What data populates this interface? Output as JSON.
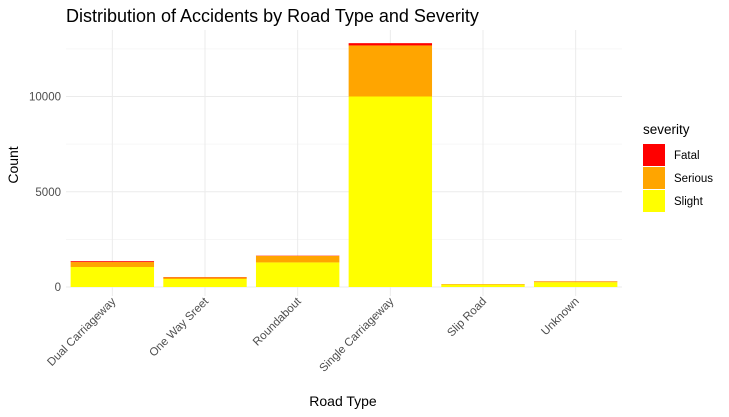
{
  "chart_data": {
    "type": "bar",
    "stacked": true,
    "title": "Distribution of Accidents by Road Type and Severity",
    "xlabel": "Road Type",
    "ylabel": "Count",
    "ylim": [
      0,
      13100
    ],
    "yticks": [
      0,
      5000,
      10000
    ],
    "ytick_labels": [
      "0",
      "5000",
      "10000"
    ],
    "grid": true,
    "categories": [
      "Dual Carriageway",
      "One Way Sreet",
      "Roundabout",
      "Single Carriageway",
      "Slip Road",
      "Unknown"
    ],
    "series": [
      {
        "name": "Slight",
        "color": "#FFFF00",
        "values": [
          1050,
          420,
          1290,
          10000,
          130,
          250
        ]
      },
      {
        "name": "Serious",
        "color": "#FFA500",
        "values": [
          260,
          90,
          340,
          2680,
          20,
          45
        ]
      },
      {
        "name": "Fatal",
        "color": "#FF0000",
        "values": [
          45,
          15,
          15,
          120,
          5,
          5
        ]
      }
    ],
    "legend": {
      "title": "severity",
      "position": "right",
      "order": [
        "Fatal",
        "Serious",
        "Slight"
      ]
    }
  }
}
